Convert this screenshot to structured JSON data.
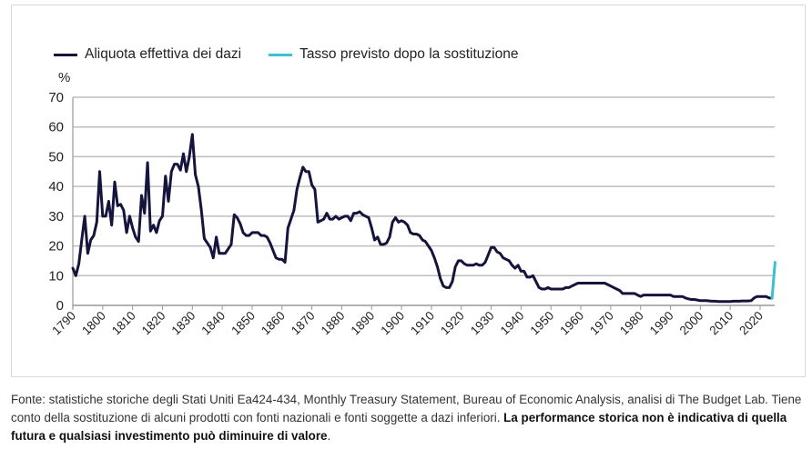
{
  "chart_data": {
    "type": "line",
    "title": "",
    "xlabel": "",
    "ylabel": "%",
    "xlim": [
      1790,
      2025
    ],
    "ylim": [
      0,
      70
    ],
    "yticks": [
      0,
      10,
      20,
      30,
      40,
      50,
      60,
      70
    ],
    "xticks": [
      1790,
      1800,
      1810,
      1820,
      1830,
      1840,
      1850,
      1860,
      1870,
      1880,
      1890,
      1900,
      1910,
      1920,
      1930,
      1940,
      1950,
      1960,
      1970,
      1980,
      1990,
      2000,
      2010,
      2020
    ],
    "grid": "horizontal",
    "legend_position": "top-left",
    "series": [
      {
        "name": "Aliquota effettiva dei dazi",
        "color": "#14143c",
        "points": [
          [
            1790,
            12.5
          ],
          [
            1791,
            10
          ],
          [
            1792,
            14
          ],
          [
            1793,
            22
          ],
          [
            1794,
            30
          ],
          [
            1795,
            17.5
          ],
          [
            1796,
            22
          ],
          [
            1797,
            23.5
          ],
          [
            1798,
            28
          ],
          [
            1799,
            45
          ],
          [
            1800,
            30
          ],
          [
            1801,
            30
          ],
          [
            1802,
            35
          ],
          [
            1803,
            27
          ],
          [
            1804,
            41.5
          ],
          [
            1805,
            33.5
          ],
          [
            1806,
            34
          ],
          [
            1807,
            32
          ],
          [
            1808,
            24.5
          ],
          [
            1809,
            30
          ],
          [
            1810,
            26
          ],
          [
            1811,
            23
          ],
          [
            1812,
            21.5
          ],
          [
            1813,
            37
          ],
          [
            1814,
            31
          ],
          [
            1815,
            48
          ],
          [
            1816,
            25
          ],
          [
            1817,
            27
          ],
          [
            1818,
            24.5
          ],
          [
            1819,
            28.5
          ],
          [
            1820,
            30
          ],
          [
            1821,
            43.5
          ],
          [
            1822,
            35
          ],
          [
            1823,
            45
          ],
          [
            1824,
            47.5
          ],
          [
            1825,
            47.5
          ],
          [
            1826,
            45.5
          ],
          [
            1827,
            51
          ],
          [
            1828,
            45
          ],
          [
            1829,
            50
          ],
          [
            1830,
            57.5
          ],
          [
            1831,
            44
          ],
          [
            1832,
            40
          ],
          [
            1833,
            32
          ],
          [
            1834,
            22.5
          ],
          [
            1835,
            21
          ],
          [
            1836,
            19.5
          ],
          [
            1837,
            16
          ],
          [
            1838,
            23
          ],
          [
            1839,
            17.5
          ],
          [
            1840,
            17.5
          ],
          [
            1841,
            17.5
          ],
          [
            1842,
            19
          ],
          [
            1843,
            20.5
          ],
          [
            1844,
            30.5
          ],
          [
            1845,
            29.5
          ],
          [
            1846,
            27.5
          ],
          [
            1847,
            24.5
          ],
          [
            1848,
            23.5
          ],
          [
            1849,
            23.5
          ],
          [
            1850,
            24.5
          ],
          [
            1851,
            24.5
          ],
          [
            1852,
            24.5
          ],
          [
            1853,
            23.5
          ],
          [
            1854,
            23.5
          ],
          [
            1855,
            23
          ],
          [
            1856,
            21
          ],
          [
            1857,
            18.5
          ],
          [
            1858,
            16
          ],
          [
            1859,
            15.5
          ],
          [
            1860,
            15.5
          ],
          [
            1861,
            14.5
          ],
          [
            1862,
            26
          ],
          [
            1863,
            29
          ],
          [
            1864,
            32
          ],
          [
            1865,
            39
          ],
          [
            1866,
            43
          ],
          [
            1867,
            46.5
          ],
          [
            1868,
            45
          ],
          [
            1869,
            45
          ],
          [
            1870,
            40.5
          ],
          [
            1871,
            39
          ],
          [
            1872,
            28
          ],
          [
            1873,
            28.5
          ],
          [
            1874,
            29
          ],
          [
            1875,
            31
          ],
          [
            1876,
            29
          ],
          [
            1877,
            29
          ],
          [
            1878,
            30
          ],
          [
            1879,
            29
          ],
          [
            1880,
            29.5
          ],
          [
            1881,
            30
          ],
          [
            1882,
            30
          ],
          [
            1883,
            28.5
          ],
          [
            1884,
            31
          ],
          [
            1885,
            31
          ],
          [
            1886,
            31.5
          ],
          [
            1887,
            30.5
          ],
          [
            1888,
            30
          ],
          [
            1889,
            29.5
          ],
          [
            1890,
            26
          ],
          [
            1891,
            22
          ],
          [
            1892,
            23
          ],
          [
            1893,
            20.5
          ],
          [
            1894,
            20.5
          ],
          [
            1895,
            21
          ],
          [
            1896,
            23
          ],
          [
            1897,
            28
          ],
          [
            1898,
            29.5
          ],
          [
            1899,
            28
          ],
          [
            1900,
            28.5
          ],
          [
            1901,
            28
          ],
          [
            1902,
            27
          ],
          [
            1903,
            24.5
          ],
          [
            1904,
            24
          ],
          [
            1905,
            24
          ],
          [
            1906,
            23.5
          ],
          [
            1907,
            22
          ],
          [
            1908,
            21.5
          ],
          [
            1909,
            20
          ],
          [
            1910,
            18.5
          ],
          [
            1911,
            16
          ],
          [
            1912,
            13
          ],
          [
            1913,
            9
          ],
          [
            1914,
            6.5
          ],
          [
            1915,
            6
          ],
          [
            1916,
            6
          ],
          [
            1917,
            8
          ],
          [
            1918,
            13
          ],
          [
            1919,
            15
          ],
          [
            1920,
            15
          ],
          [
            1921,
            14
          ],
          [
            1922,
            13.5
          ],
          [
            1923,
            13.5
          ],
          [
            1924,
            13.5
          ],
          [
            1925,
            14
          ],
          [
            1926,
            13.5
          ],
          [
            1927,
            13.5
          ],
          [
            1928,
            14.5
          ],
          [
            1929,
            17
          ],
          [
            1930,
            19.5
          ],
          [
            1931,
            19.5
          ],
          [
            1932,
            18
          ],
          [
            1933,
            17.5
          ],
          [
            1934,
            16
          ],
          [
            1935,
            15.5
          ],
          [
            1936,
            15
          ],
          [
            1937,
            13.5
          ],
          [
            1938,
            12.5
          ],
          [
            1939,
            13.5
          ],
          [
            1940,
            11.5
          ],
          [
            1941,
            11.5
          ],
          [
            1942,
            9.5
          ],
          [
            1943,
            9.5
          ],
          [
            1944,
            10
          ],
          [
            1945,
            8
          ],
          [
            1946,
            6
          ],
          [
            1947,
            5.5
          ],
          [
            1948,
            5.5
          ],
          [
            1949,
            6
          ],
          [
            1950,
            5.5
          ],
          [
            1951,
            5.5
          ],
          [
            1952,
            5.5
          ],
          [
            1953,
            5.5
          ],
          [
            1954,
            5.5
          ],
          [
            1955,
            6
          ],
          [
            1956,
            6
          ],
          [
            1957,
            6.5
          ],
          [
            1958,
            7
          ],
          [
            1959,
            7.5
          ],
          [
            1960,
            7.5
          ],
          [
            1961,
            7.5
          ],
          [
            1962,
            7.5
          ],
          [
            1963,
            7.5
          ],
          [
            1964,
            7.5
          ],
          [
            1965,
            7.5
          ],
          [
            1966,
            7.5
          ],
          [
            1967,
            7.5
          ],
          [
            1968,
            7.5
          ],
          [
            1969,
            7
          ],
          [
            1970,
            6.5
          ],
          [
            1971,
            6
          ],
          [
            1972,
            5.5
          ],
          [
            1973,
            5
          ],
          [
            1974,
            4
          ],
          [
            1975,
            4
          ],
          [
            1976,
            4
          ],
          [
            1977,
            4
          ],
          [
            1978,
            4
          ],
          [
            1979,
            3.5
          ],
          [
            1980,
            3
          ],
          [
            1981,
            3.5
          ],
          [
            1982,
            3.5
          ],
          [
            1983,
            3.5
          ],
          [
            1984,
            3.5
          ],
          [
            1985,
            3.5
          ],
          [
            1986,
            3.5
          ],
          [
            1987,
            3.5
          ],
          [
            1988,
            3.5
          ],
          [
            1989,
            3.5
          ],
          [
            1990,
            3.5
          ],
          [
            1991,
            3
          ],
          [
            1992,
            3
          ],
          [
            1993,
            3
          ],
          [
            1994,
            3
          ],
          [
            1995,
            2.5
          ],
          [
            1996,
            2.2
          ],
          [
            1997,
            2
          ],
          [
            1998,
            2
          ],
          [
            1999,
            1.8
          ],
          [
            2000,
            1.6
          ],
          [
            2001,
            1.6
          ],
          [
            2002,
            1.6
          ],
          [
            2003,
            1.5
          ],
          [
            2004,
            1.4
          ],
          [
            2005,
            1.4
          ],
          [
            2006,
            1.3
          ],
          [
            2007,
            1.3
          ],
          [
            2008,
            1.3
          ],
          [
            2009,
            1.3
          ],
          [
            2010,
            1.3
          ],
          [
            2011,
            1.4
          ],
          [
            2012,
            1.4
          ],
          [
            2013,
            1.4
          ],
          [
            2014,
            1.5
          ],
          [
            2015,
            1.5
          ],
          [
            2016,
            1.5
          ],
          [
            2017,
            1.6
          ],
          [
            2018,
            2.5
          ],
          [
            2019,
            3
          ],
          [
            2020,
            3
          ],
          [
            2021,
            3
          ],
          [
            2022,
            3
          ],
          [
            2023,
            2.5
          ],
          [
            2024,
            2.4
          ]
        ]
      },
      {
        "name": "Tasso previsto dopo la sostituzione",
        "color": "#3cc0cf",
        "points": [
          [
            2024,
            2.4
          ],
          [
            2025,
            14.5
          ]
        ]
      }
    ]
  },
  "footer": {
    "source_text": "Fonte: statistiche storiche degli Stati Uniti Ea424-434, Monthly Treasury Statement, Bureau of Economic Analysis, analisi di The Budget Lab. Tiene conto della sostituzione di alcuni prodotti con fonti nazionali e fonti soggette a dazi inferiori. ",
    "disclaimer": "La performance storica non è indicativa di quella futura e qualsiasi investimento può diminuire di valore",
    "end": "."
  }
}
